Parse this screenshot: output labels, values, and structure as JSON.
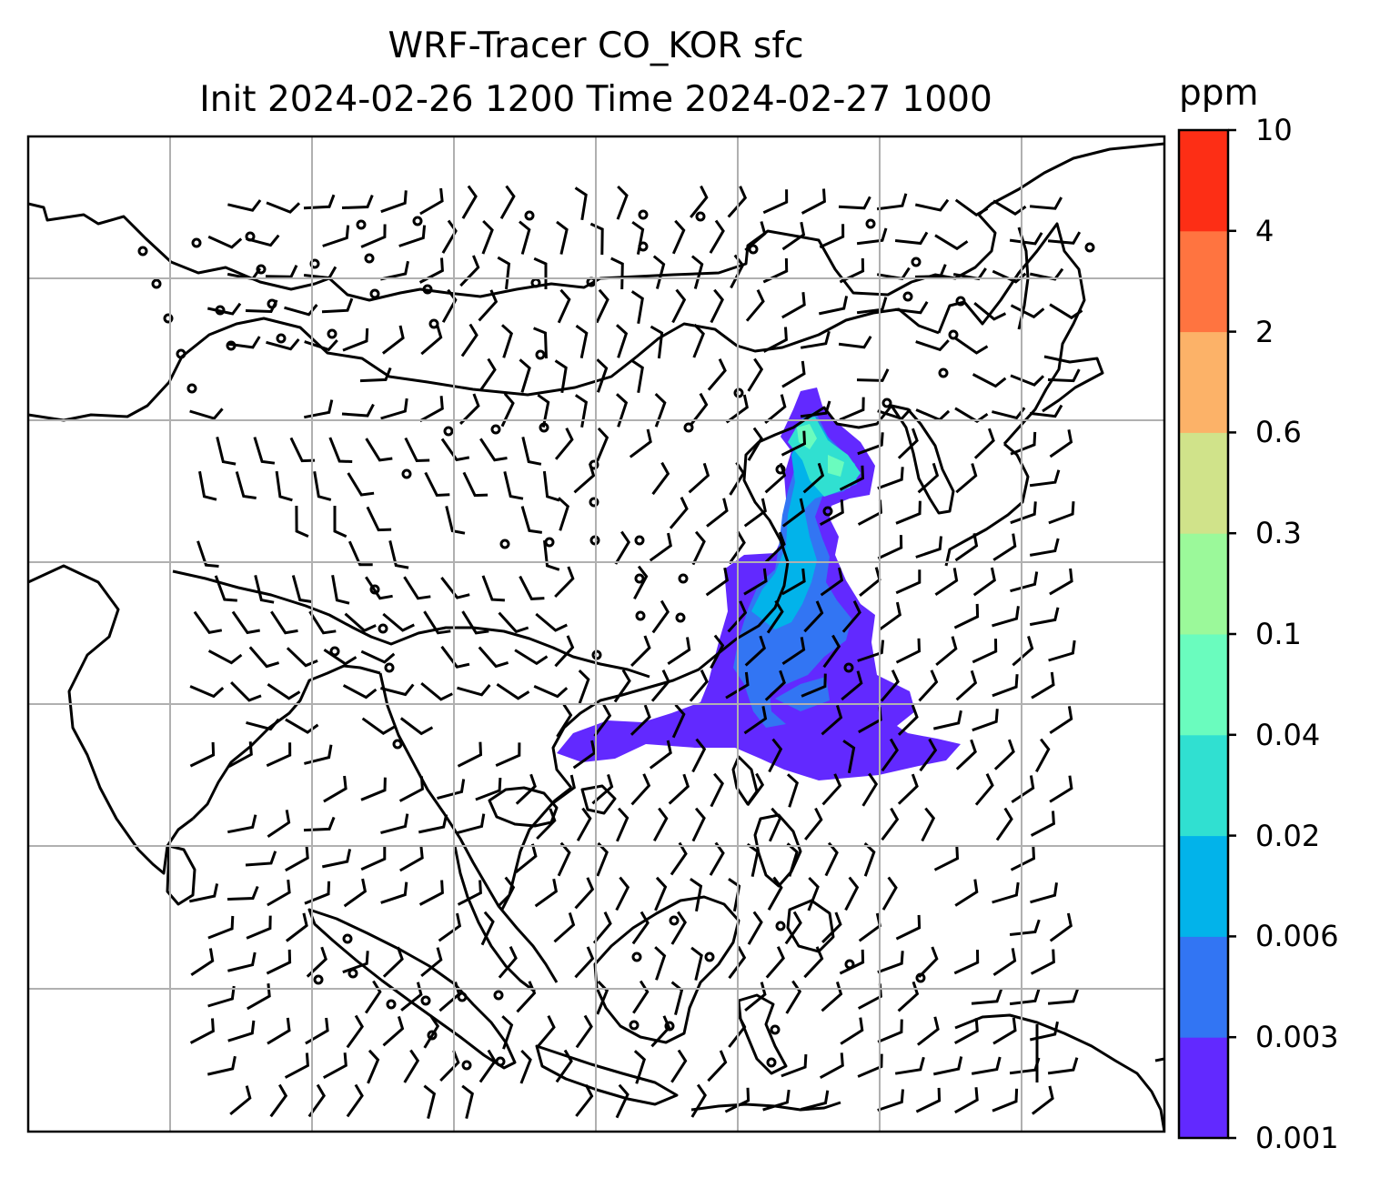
{
  "title": "WRF-Tracer CO_KOR sfc",
  "subtitle": "Init 2024-02-26 1200 Time 2024-02-27 1000",
  "colorbar": {
    "units": "ppm",
    "levels": [
      "0.001",
      "0.003",
      "0.006",
      "0.02",
      "0.04",
      "0.1",
      "0.3",
      "0.6",
      "2",
      "4",
      "10"
    ],
    "colors": [
      "#6229ff",
      "#3275f3",
      "#02b3ea",
      "#30e0d1",
      "#6afcbe",
      "#9bf99a",
      "#d0e38a",
      "#fcb268",
      "#ff7440",
      "#fd2e15"
    ]
  },
  "map": {
    "gridlines": true,
    "features": [
      "coastlines",
      "wind-barbs",
      "calm-wind-circles",
      "co-tracer-plume"
    ],
    "plume_source": "Korea"
  }
}
